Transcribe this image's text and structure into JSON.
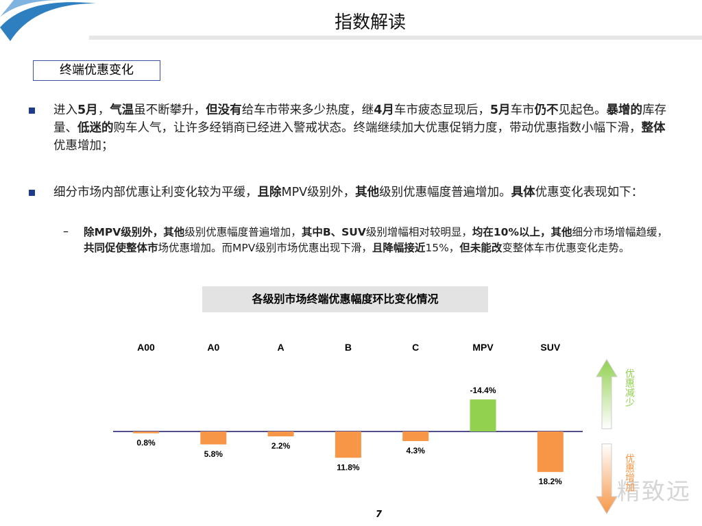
{
  "header": {
    "title": "指数解读"
  },
  "section_label": "终端优惠变化",
  "bullets": [
    {
      "runs": [
        {
          "text": "进入",
          "bold": false
        },
        {
          "text": "5月",
          "bold": true
        },
        {
          "text": "，",
          "bold": false
        },
        {
          "text": "气温",
          "bold": true
        },
        {
          "text": "虽不断攀升，",
          "bold": false
        },
        {
          "text": "但没有",
          "bold": true
        },
        {
          "text": "给车市带来多少热度，继",
          "bold": false
        },
        {
          "text": "4月",
          "bold": true
        },
        {
          "text": "车市疲态显现后，",
          "bold": false
        },
        {
          "text": "5月",
          "bold": true
        },
        {
          "text": "车市",
          "bold": false
        },
        {
          "text": "仍不",
          "bold": true
        },
        {
          "text": "见起色。",
          "bold": false
        },
        {
          "text": "暴增的",
          "bold": true
        },
        {
          "text": "库存量、",
          "bold": false
        },
        {
          "text": "低迷的",
          "bold": true
        },
        {
          "text": "购车人气，让许多经销商已经进入警戒状态。终端继续加大优惠促销力度，带动优惠指数小幅下滑，",
          "bold": false
        },
        {
          "text": "整体",
          "bold": true
        },
        {
          "text": "优惠增加；",
          "bold": false
        }
      ]
    },
    {
      "runs": [
        {
          "text": "细分市场内部优惠让利变化较为平缓，",
          "bold": false
        },
        {
          "text": "且除",
          "bold": true
        },
        {
          "text": "MPV级别外，",
          "bold": false
        },
        {
          "text": "其他",
          "bold": true
        },
        {
          "text": "级别优惠幅度普遍增加。",
          "bold": false
        },
        {
          "text": "具体",
          "bold": true
        },
        {
          "text": "优惠变化表现如下：",
          "bold": false
        }
      ],
      "sub": [
        {
          "runs": [
            {
              "text": "除MPV级别外，",
              "bold": true
            },
            {
              "text": "其他",
              "bold": true
            },
            {
              "text": "级别优惠幅度普遍增加，",
              "bold": false
            },
            {
              "text": "其中B、SUV",
              "bold": true
            },
            {
              "text": "级别增幅相对较明显，",
              "bold": false
            },
            {
              "text": "均在10%以上，",
              "bold": true
            },
            {
              "text": "其他",
              "bold": true
            },
            {
              "text": "细分市场增幅趋缓，",
              "bold": false
            },
            {
              "text": "共同促使整体市",
              "bold": true
            },
            {
              "text": "场优惠增加。而MPV级别市场优惠出现下滑，",
              "bold": false
            },
            {
              "text": "且降幅接近",
              "bold": true
            },
            {
              "text": "15%，",
              "bold": false
            },
            {
              "text": "但未能改",
              "bold": true
            },
            {
              "text": "变整体车市优惠变化走势。",
              "bold": false
            }
          ]
        }
      ]
    }
  ],
  "chart_data": {
    "type": "bar",
    "title": "各级别市场终端优惠幅度环比变化情况",
    "categories": [
      "A00",
      "A0",
      "A",
      "B",
      "C",
      "MPV",
      "SUV"
    ],
    "values": [
      0.8,
      5.8,
      2.2,
      11.8,
      4.3,
      -14.4,
      18.2
    ],
    "value_labels": [
      "0.8%",
      "5.8%",
      "2.2%",
      "11.8%",
      "4.3%",
      "-14.4%",
      "18.2%"
    ],
    "positive_color": "#f79646",
    "negative_color": "#92d050",
    "inverted": true,
    "annotations": [
      {
        "text": "优惠减少",
        "color": "#92d050"
      },
      {
        "text": "优惠增加",
        "color": "#f79646"
      }
    ]
  },
  "watermark": "精致远",
  "page_number": "7"
}
